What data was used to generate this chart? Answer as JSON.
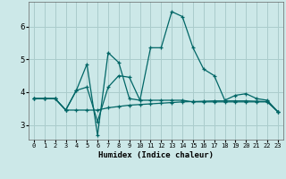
{
  "xlabel": "Humidex (Indice chaleur)",
  "bg_color": "#cce8e8",
  "grid_color": "#aacccc",
  "line_color": "#006666",
  "xlim": [
    -0.5,
    23.5
  ],
  "ylim": [
    2.55,
    6.75
  ],
  "yticks": [
    3,
    4,
    5,
    6
  ],
  "xtick_labels": [
    "0",
    "1",
    "2",
    "3",
    "4",
    "5",
    "6",
    "7",
    "8",
    "9",
    "10",
    "11",
    "12",
    "13",
    "14",
    "15",
    "16",
    "17",
    "18",
    "19",
    "20",
    "21",
    "22",
    "23"
  ],
  "series": [
    [
      3.8,
      3.8,
      3.8,
      3.45,
      4.05,
      4.85,
      2.68,
      5.2,
      4.9,
      3.8,
      3.75,
      5.35,
      5.35,
      6.45,
      6.3,
      5.35,
      4.7,
      4.5,
      3.75,
      3.9,
      3.95,
      3.8,
      3.75,
      3.4
    ],
    [
      3.8,
      3.8,
      3.8,
      3.45,
      4.05,
      4.15,
      3.1,
      4.15,
      4.5,
      4.45,
      3.75,
      3.75,
      3.75,
      3.75,
      3.75,
      3.7,
      3.7,
      3.7,
      3.7,
      3.7,
      3.7,
      3.7,
      3.7,
      3.4
    ],
    [
      3.8,
      3.8,
      3.8,
      3.45,
      3.45,
      3.45,
      3.45,
      3.52,
      3.56,
      3.6,
      3.62,
      3.64,
      3.66,
      3.68,
      3.7,
      3.71,
      3.72,
      3.73,
      3.73,
      3.73,
      3.73,
      3.72,
      3.71,
      3.4
    ]
  ]
}
